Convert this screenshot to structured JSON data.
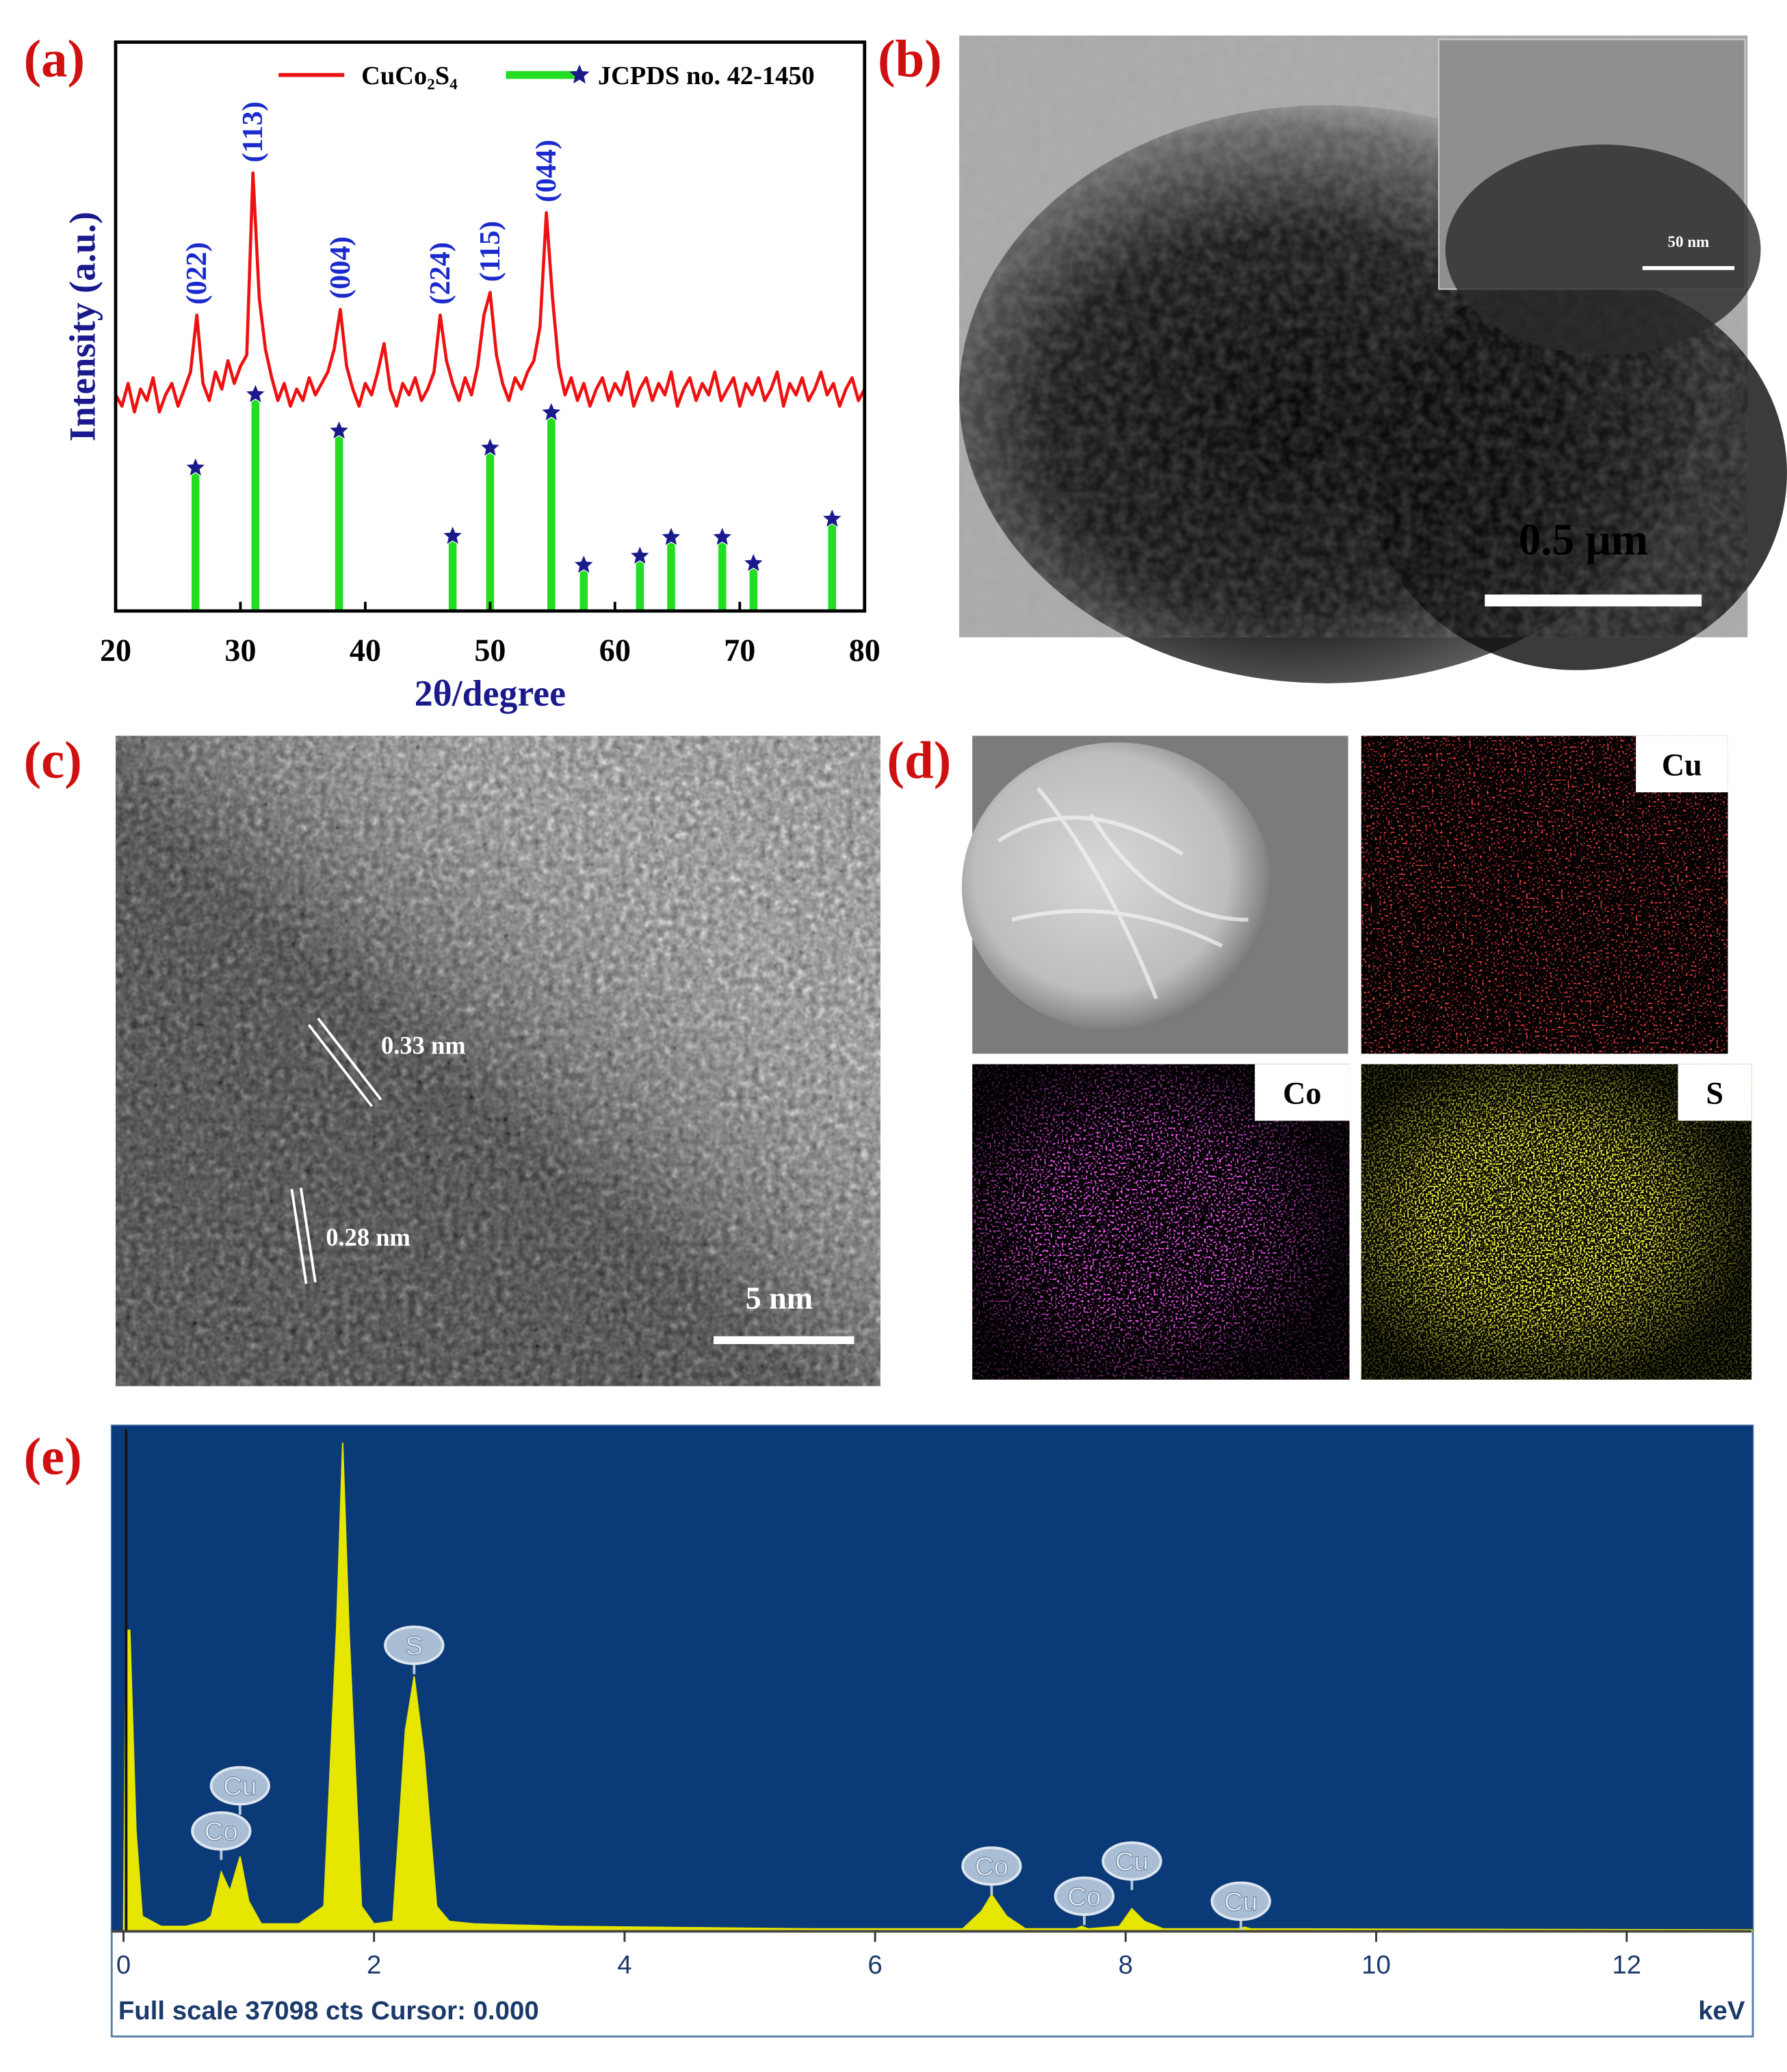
{
  "panel_labels": [
    "(a)",
    "(b)",
    "(c)",
    "(d)",
    "(e)"
  ],
  "chart_data": [
    {
      "type": "line",
      "xlabel": "2θ/degree",
      "ylabel": "Intensity (a.u.)",
      "xlim": [
        20,
        80
      ],
      "xticks": [
        20,
        30,
        40,
        50,
        60,
        70,
        80
      ],
      "ylim": [
        0,
        100
      ],
      "series": [
        {
          "name": "CuCo₂S₄",
          "color": "#ee1111",
          "type": "line",
          "x": [
            20,
            20.5,
            21,
            21.5,
            22,
            22.5,
            23,
            23.5,
            24,
            24.5,
            25,
            25.5,
            26,
            26.5,
            27,
            27.5,
            28,
            28.5,
            29,
            29.5,
            30,
            30.5,
            31,
            31.5,
            32,
            32.5,
            33,
            33.5,
            34,
            34.5,
            35,
            35.5,
            36,
            36.5,
            37,
            37.5,
            38,
            38.5,
            39,
            39.5,
            40,
            40.5,
            41,
            41.5,
            42,
            42.5,
            43,
            43.5,
            44,
            44.5,
            45,
            45.5,
            46,
            46.5,
            47,
            47.5,
            48,
            48.5,
            49,
            49.5,
            50,
            50.5,
            51,
            51.5,
            52,
            52.5,
            53,
            53.5,
            54,
            54.5,
            55,
            55.5,
            56,
            56.5,
            57,
            57.5,
            58,
            58.5,
            59,
            59.5,
            60,
            60.5,
            61,
            61.5,
            62,
            62.5,
            63,
            63.5,
            64,
            64.5,
            65,
            65.5,
            66,
            66.5,
            67,
            67.5,
            68,
            68.5,
            69,
            69.5,
            70,
            70.5,
            71,
            71.5,
            72,
            72.5,
            73,
            73.5,
            74,
            74.5,
            75,
            75.5,
            76,
            76.5,
            77,
            77.5,
            78,
            78.5,
            79,
            79.5,
            80
          ],
          "values": [
            38,
            36,
            40,
            35,
            39,
            37,
            41,
            35,
            38,
            40,
            36,
            39,
            42,
            52,
            40,
            37,
            42,
            39,
            44,
            40,
            43,
            45,
            77,
            55,
            46,
            41,
            37,
            40,
            36,
            39,
            37,
            41,
            38,
            40,
            42,
            46,
            53,
            43,
            39,
            36,
            40,
            38,
            42,
            47,
            39,
            36,
            40,
            38,
            41,
            37,
            39,
            42,
            52,
            44,
            40,
            37,
            41,
            38,
            43,
            52,
            56,
            45,
            40,
            37,
            41,
            39,
            42,
            44,
            50,
            70,
            55,
            43,
            38,
            41,
            37,
            40,
            36,
            39,
            41,
            37,
            40,
            38,
            42,
            36,
            39,
            41,
            37,
            40,
            38,
            42,
            36,
            39,
            41,
            37,
            40,
            38,
            42,
            37,
            39,
            41,
            36,
            40,
            38,
            41,
            37,
            39,
            42,
            36,
            40,
            38,
            41,
            37,
            39,
            42,
            38,
            40,
            36,
            39,
            41,
            37,
            39
          ]
        },
        {
          "name": "JCPDS no. 42-1450",
          "color": "#22dd22",
          "marker_color": "#1a1a8c",
          "type": "stem",
          "x": [
            26.4,
            31.2,
            37.9,
            47.0,
            50.0,
            54.9,
            57.5,
            62.0,
            64.5,
            68.6,
            71.1,
            77.4
          ],
          "values": [
            24.7,
            37.6,
            31.2,
            12.7,
            28.2,
            34.4,
            7.6,
            9.2,
            12.5,
            12.5,
            7.9,
            15.7
          ]
        }
      ],
      "annotations": [
        {
          "text": "(022)",
          "x": 26.5,
          "y": 52
        },
        {
          "text": "(113)",
          "x": 31,
          "y": 77
        },
        {
          "text": "(004)",
          "x": 38,
          "y": 53
        },
        {
          "text": "(224)",
          "x": 46,
          "y": 52
        },
        {
          "text": "(115)",
          "x": 50,
          "y": 56
        },
        {
          "text": "(044)",
          "x": 54.5,
          "y": 70
        }
      ]
    },
    {
      "type": "area",
      "xlabel": "keV",
      "footer": "Full scale 37098 cts Cursor: 0.000",
      "xlim": [
        0,
        13
      ],
      "xticks": [
        0,
        2,
        4,
        6,
        8,
        10,
        12
      ],
      "ylim": [
        0,
        100
      ],
      "background": "#0b3a78",
      "color": "#e6e600",
      "x": [
        0,
        0.02,
        0.05,
        0.1,
        0.15,
        0.3,
        0.5,
        0.65,
        0.7,
        0.78,
        0.85,
        0.93,
        1.0,
        1.1,
        1.4,
        1.6,
        1.7,
        1.75,
        1.8,
        1.9,
        2.0,
        2.15,
        2.25,
        2.32,
        2.4,
        2.5,
        2.6,
        2.8,
        3.5,
        5.5,
        6.7,
        6.85,
        6.93,
        7.05,
        7.2,
        7.6,
        7.65,
        7.7,
        7.95,
        8.05,
        8.15,
        8.3,
        8.9,
        8.95,
        9.0,
        13
      ],
      "values": [
        0,
        60,
        60,
        20,
        3,
        1,
        1,
        2,
        3,
        11.8,
        8,
        14.9,
        6,
        1.5,
        1.5,
        5,
        60,
        97.4,
        60,
        5,
        1.5,
        2,
        40,
        50.8,
        35,
        5,
        2,
        1.5,
        1,
        0.5,
        0.5,
        4,
        7.3,
        3,
        0.5,
        0.5,
        1,
        0.5,
        1,
        4.5,
        2,
        0.5,
        0.5,
        0.8,
        0.5,
        0.3
      ],
      "annotations": [
        {
          "text": "S",
          "x": 2.32,
          "y": 57
        },
        {
          "text": "Cu",
          "x": 0.93,
          "y": 29
        },
        {
          "text": "Co",
          "x": 0.78,
          "y": 20
        },
        {
          "text": "Co",
          "x": 6.93,
          "y": 13
        },
        {
          "text": "Co",
          "x": 7.67,
          "y": 7
        },
        {
          "text": "Cu",
          "x": 8.05,
          "y": 14
        },
        {
          "text": "Cu",
          "x": 8.92,
          "y": 6
        }
      ]
    }
  ],
  "tem_image": {
    "scale_bar": "0.5 μm",
    "inset_scale_bar": "50 nm"
  },
  "hrtem_image": {
    "fringes": [
      "0.33 nm",
      "0.28 nm"
    ],
    "scale_bar": "5 nm"
  },
  "elemental_maps": {
    "labels": [
      "Cu",
      "Co",
      "S"
    ]
  }
}
